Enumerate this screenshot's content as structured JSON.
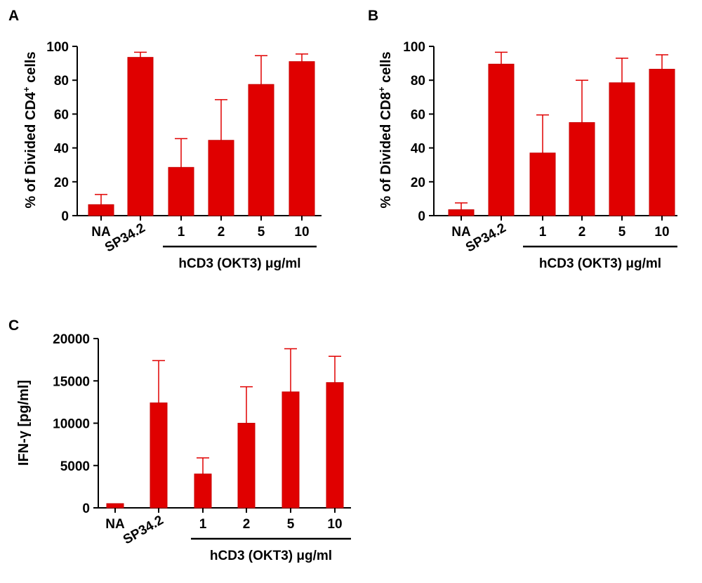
{
  "colors": {
    "bar": "#e00000",
    "bar_edge": "#c80000",
    "axis": "#000000"
  },
  "chart_data": [
    {
      "panel": "A",
      "type": "bar",
      "ylabel_pre": "% of Divided CD4",
      "ylabel_sup": "+",
      "ylabel_post": " cells",
      "categories": [
        "NA",
        "SP34.2",
        "1",
        "2",
        "5",
        "10"
      ],
      "values": [
        6.5,
        93.5,
        28.5,
        44.5,
        77.5,
        91
      ],
      "errors": [
        6,
        3,
        17,
        24,
        17,
        4.5
      ],
      "ylim": [
        0,
        100
      ],
      "yticks": [
        0,
        20,
        40,
        60,
        80,
        100
      ],
      "group_label": "hCD3 (OKT3) μg/ml",
      "group_categories": [
        "1",
        "2",
        "5",
        "10"
      ],
      "grid": false
    },
    {
      "panel": "B",
      "type": "bar",
      "ylabel_pre": "% of Divided CD8",
      "ylabel_sup": "+",
      "ylabel_post": " cells",
      "categories": [
        "NA",
        "SP34.2",
        "1",
        "2",
        "5",
        "10"
      ],
      "values": [
        3.5,
        89.5,
        37,
        55,
        78.5,
        86.5
      ],
      "errors": [
        4,
        7,
        22.5,
        25,
        14.5,
        8.5
      ],
      "ylim": [
        0,
        100
      ],
      "yticks": [
        0,
        20,
        40,
        60,
        80,
        100
      ],
      "group_label": "hCD3 (OKT3) μg/ml",
      "group_categories": [
        "1",
        "2",
        "5",
        "10"
      ],
      "grid": false
    },
    {
      "panel": "C",
      "type": "bar",
      "ylabel_pre": "IFN-γ [pg/ml]",
      "ylabel_sup": "",
      "ylabel_post": "",
      "categories": [
        "NA",
        "SP34.2",
        "1",
        "2",
        "5",
        "10"
      ],
      "values": [
        500,
        12400,
        4000,
        10000,
        13700,
        14800
      ],
      "errors": [
        0,
        5000,
        1900,
        4300,
        5100,
        3100
      ],
      "ylim": [
        0,
        20000
      ],
      "yticks": [
        0,
        5000,
        10000,
        15000,
        20000
      ],
      "group_label": "hCD3 (OKT3) μg/ml",
      "group_categories": [
        "1",
        "2",
        "5",
        "10"
      ],
      "grid": false
    }
  ]
}
